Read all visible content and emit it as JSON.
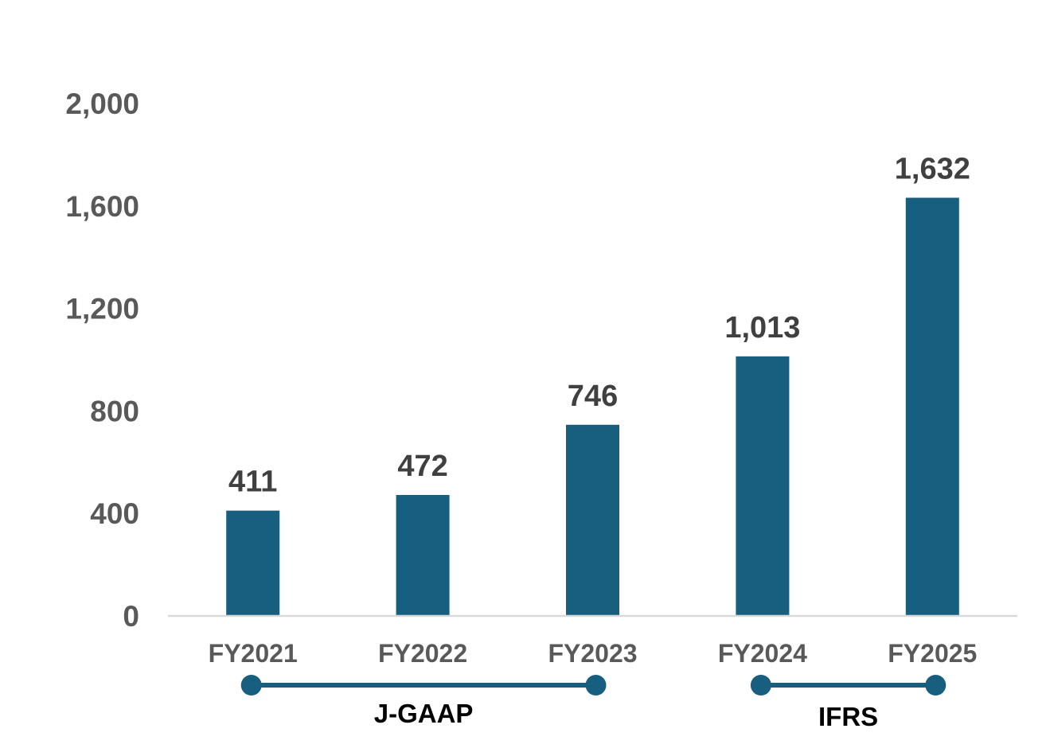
{
  "chart_data": {
    "type": "bar",
    "categories": [
      "FY2021",
      "FY2022",
      "FY2023",
      "FY2024",
      "FY2025"
    ],
    "values": [
      411,
      472,
      746,
      1013,
      1632
    ],
    "data_labels": [
      "411",
      "472",
      "746",
      "1,013",
      "1,632"
    ],
    "title": "",
    "xlabel": "",
    "ylabel": "",
    "ylim": [
      0,
      2000
    ],
    "yticks": [
      0,
      400,
      800,
      1200,
      1600,
      2000
    ],
    "ytick_labels": [
      "0",
      "400",
      "800",
      "1,200",
      "1,600",
      "2,000"
    ],
    "grid": false,
    "legend": "none",
    "bar_color": "#175E7F",
    "groups": [
      {
        "label": "J-GAAP",
        "from": "FY2021",
        "to": "FY2023",
        "color": "#175E7F"
      },
      {
        "label": "IFRS",
        "from": "FY2024",
        "to": "FY2025",
        "color": "#175E7F"
      }
    ]
  }
}
